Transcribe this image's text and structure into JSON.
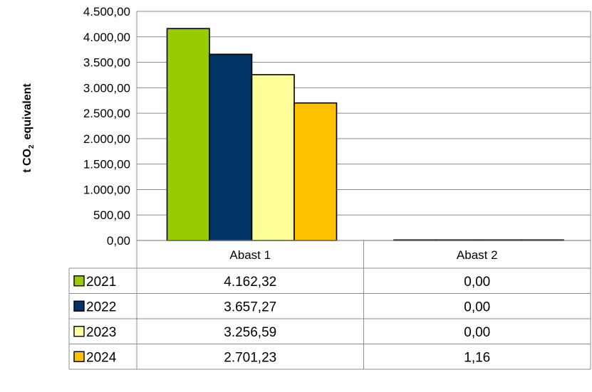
{
  "chart_data": {
    "type": "bar",
    "title": "",
    "ylabel": "t CO",
    "ylabel_sub": "2",
    "ylabel_tail": "equivalent",
    "categories": [
      "Abast 1",
      "Abast 2"
    ],
    "series": [
      {
        "name": "2021",
        "values": [
          4162.32,
          0.0
        ],
        "labels": [
          "4.162,32",
          "0,00"
        ],
        "color": "#99CC00"
      },
      {
        "name": "2022",
        "values": [
          3657.27,
          0.0
        ],
        "labels": [
          "3.657,27",
          "0,00"
        ],
        "color": "#003366"
      },
      {
        "name": "2023",
        "values": [
          3256.59,
          0.0
        ],
        "labels": [
          "3.256,59",
          "0,00"
        ],
        "color": "#FFFF99"
      },
      {
        "name": "2024",
        "values": [
          2701.23,
          1.16
        ],
        "labels": [
          "2.701,23",
          "1,16"
        ],
        "color": "#FFC000"
      }
    ],
    "ylim": [
      0,
      4500
    ],
    "yticks": [
      0,
      500,
      1000,
      1500,
      2000,
      2500,
      3000,
      3500,
      4000,
      4500
    ],
    "ytick_labels": [
      "0,00",
      "500,00",
      "1.000,00",
      "1.500,00",
      "2.000,00",
      "2.500,00",
      "3.000,00",
      "3.500,00",
      "4.000,00",
      "4.500,00"
    ],
    "grid": true,
    "legend": "data-table"
  }
}
